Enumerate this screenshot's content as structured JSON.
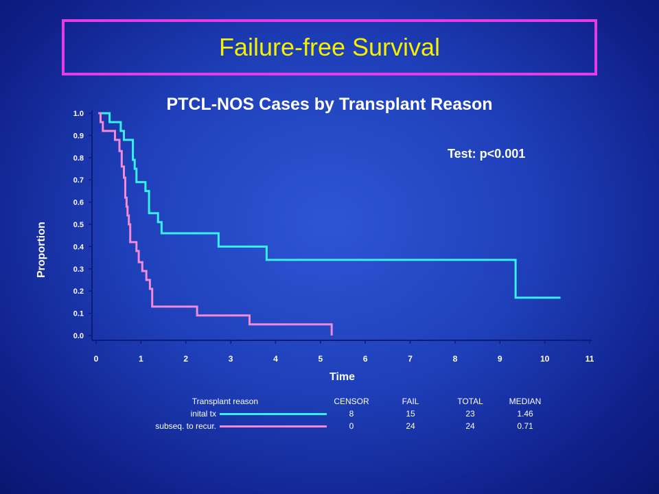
{
  "title": "Failure-free Survival",
  "chart_data": {
    "type": "line",
    "step": true,
    "title": "PTCL-NOS Cases by Transplant Reason",
    "annotation": "Test: p<0.001",
    "xlabel": "Time",
    "ylabel": "Proportion",
    "xlim": [
      0,
      11
    ],
    "ylim": [
      0,
      1
    ],
    "x_ticks": [
      "0",
      "1",
      "2",
      "3",
      "4",
      "5",
      "6",
      "7",
      "8",
      "9",
      "10",
      "11"
    ],
    "y_ticks": [
      "0.0",
      "0.1",
      "0.2",
      "0.3",
      "0.4",
      "0.5",
      "0.6",
      "0.7",
      "0.8",
      "0.9",
      "1.0"
    ],
    "series": [
      {
        "name": "inital tx",
        "color": "#39f0f0",
        "points": [
          [
            0.05,
            1.0
          ],
          [
            0.3,
            1.0
          ],
          [
            0.3,
            0.96
          ],
          [
            0.55,
            0.96
          ],
          [
            0.55,
            0.92
          ],
          [
            0.62,
            0.92
          ],
          [
            0.62,
            0.88
          ],
          [
            0.82,
            0.88
          ],
          [
            0.82,
            0.79
          ],
          [
            0.86,
            0.79
          ],
          [
            0.86,
            0.75
          ],
          [
            0.9,
            0.75
          ],
          [
            0.9,
            0.69
          ],
          [
            1.1,
            0.69
          ],
          [
            1.1,
            0.65
          ],
          [
            1.18,
            0.65
          ],
          [
            1.18,
            0.55
          ],
          [
            1.38,
            0.55
          ],
          [
            1.38,
            0.51
          ],
          [
            1.46,
            0.51
          ],
          [
            1.46,
            0.46
          ],
          [
            2.73,
            0.46
          ],
          [
            2.73,
            0.4
          ],
          [
            3.8,
            0.4
          ],
          [
            3.8,
            0.34
          ],
          [
            9.35,
            0.34
          ],
          [
            9.35,
            0.17
          ],
          [
            10.35,
            0.17
          ]
        ]
      },
      {
        "name": "subseq. to recur.",
        "color": "#f28ad6",
        "points": [
          [
            0.05,
            1.0
          ],
          [
            0.1,
            1.0
          ],
          [
            0.1,
            0.96
          ],
          [
            0.15,
            0.96
          ],
          [
            0.15,
            0.92
          ],
          [
            0.42,
            0.92
          ],
          [
            0.42,
            0.88
          ],
          [
            0.52,
            0.88
          ],
          [
            0.52,
            0.83
          ],
          [
            0.57,
            0.83
          ],
          [
            0.57,
            0.76
          ],
          [
            0.62,
            0.76
          ],
          [
            0.62,
            0.71
          ],
          [
            0.65,
            0.71
          ],
          [
            0.65,
            0.62
          ],
          [
            0.68,
            0.62
          ],
          [
            0.68,
            0.58
          ],
          [
            0.7,
            0.58
          ],
          [
            0.7,
            0.54
          ],
          [
            0.73,
            0.54
          ],
          [
            0.73,
            0.5
          ],
          [
            0.76,
            0.5
          ],
          [
            0.76,
            0.42
          ],
          [
            0.9,
            0.42
          ],
          [
            0.9,
            0.38
          ],
          [
            0.95,
            0.38
          ],
          [
            0.95,
            0.33
          ],
          [
            1.03,
            0.33
          ],
          [
            1.03,
            0.29
          ],
          [
            1.12,
            0.29
          ],
          [
            1.12,
            0.25
          ],
          [
            1.2,
            0.25
          ],
          [
            1.2,
            0.21
          ],
          [
            1.25,
            0.21
          ],
          [
            1.25,
            0.13
          ],
          [
            2.25,
            0.13
          ],
          [
            2.25,
            0.09
          ],
          [
            3.42,
            0.09
          ],
          [
            3.42,
            0.05
          ],
          [
            5.25,
            0.05
          ],
          [
            5.25,
            0.0
          ]
        ]
      }
    ],
    "legend": {
      "headers": [
        "Transplant reason",
        "CENSOR",
        "FAIL",
        "TOTAL",
        "MEDIAN"
      ],
      "rows": [
        {
          "label": "inital tx",
          "color": "#39f0f0",
          "censor": "8",
          "fail": "15",
          "total": "23",
          "median": "1.46"
        },
        {
          "label": "subseq. to recur.",
          "color": "#f28ad6",
          "censor": "0",
          "fail": "24",
          "total": "24",
          "median": "0.71"
        }
      ]
    }
  }
}
